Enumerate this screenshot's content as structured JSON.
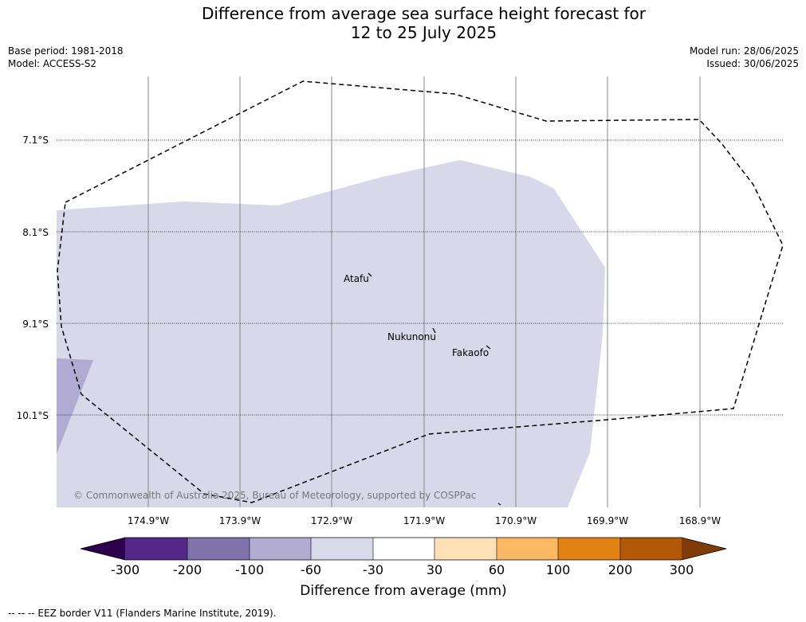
{
  "header": {
    "title_line1": "Difference from average sea surface height forecast for",
    "title_line2": "12 to 25 July 2025",
    "base_period": "Base period: 1981-2018",
    "model": "Model: ACCESS-S2",
    "model_run": "Model run: 28/06/2025",
    "issued": "Issued: 30/06/2025"
  },
  "map": {
    "lat_labels": [
      "7.1°S",
      "8.1°S",
      "9.1°S",
      "10.1°S"
    ],
    "lon_labels": [
      "174.9°W",
      "173.9°W",
      "172.9°W",
      "171.9°W",
      "170.9°W",
      "169.9°W",
      "168.9°W"
    ],
    "places": [
      "Atafu",
      "Nukunonu",
      "Fakaofo"
    ],
    "copyright": "© Commonwealth of Australia 2025, Bureau of Meteorology, supported by COSPPac",
    "fill_colors": {
      "light": "#d8d8ea",
      "medium": "#b1aad2"
    }
  },
  "colorbar": {
    "ticks": [
      "-300",
      "-200",
      "-100",
      "-60",
      "-30",
      "30",
      "60",
      "100",
      "200",
      "300"
    ],
    "colors": [
      "#2d004b",
      "#542788",
      "#8073ac",
      "#b2abd2",
      "#d8daeb",
      "#ffffff",
      "#fee0b6",
      "#fdb863",
      "#e08214",
      "#b35806",
      "#7f3b08"
    ],
    "label": "Difference from average (mm)"
  },
  "footer": {
    "legend": "--  --  -- EEZ border V11 (Flanders Marine Institute, 2019)."
  }
}
